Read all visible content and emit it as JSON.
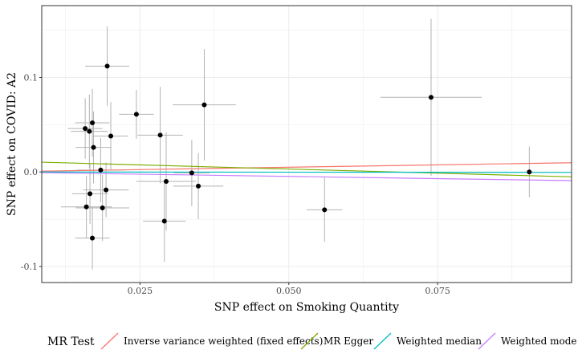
{
  "chart_data": {
    "type": "scatter",
    "xlabel": "SNP effect on Smoking Quantity",
    "ylabel": "SNP effect on COVID: A2",
    "xlim": [
      0.0085,
      0.0975
    ],
    "ylim": [
      -0.117,
      0.176
    ],
    "x_ticks": [
      0.025,
      0.05,
      0.075
    ],
    "x_tick_labels": [
      "0.025",
      "0.050",
      "0.075"
    ],
    "y_ticks": [
      -0.1,
      0.0,
      0.1
    ],
    "y_tick_labels": [
      "-0.1",
      "0.0",
      "0.1"
    ],
    "grid": true,
    "legend": {
      "title": "MR Test",
      "position": "bottom",
      "entries": [
        {
          "label": "Inverse variance weighted (fixed effects)",
          "color": "#F8766D"
        },
        {
          "label": "MR Egger",
          "color": "#7CAE00"
        },
        {
          "label": "Weighted median",
          "color": "#00BFC4"
        },
        {
          "label": "Weighted mode",
          "color": "#C77CFF"
        }
      ]
    },
    "points": [
      {
        "x": 0.0195,
        "y": 0.112,
        "se_x": 0.0037,
        "se_y": 0.042
      },
      {
        "x": 0.0739,
        "y": 0.079,
        "se_x": 0.0085,
        "se_y": 0.083
      },
      {
        "x": 0.0358,
        "y": 0.071,
        "se_x": 0.0053,
        "se_y": 0.059
      },
      {
        "x": 0.0244,
        "y": 0.061,
        "se_x": 0.0029,
        "se_y": 0.026
      },
      {
        "x": 0.017,
        "y": 0.052,
        "se_x": 0.0029,
        "se_y": 0.036
      },
      {
        "x": 0.0158,
        "y": 0.046,
        "se_x": 0.0029,
        "se_y": 0.032
      },
      {
        "x": 0.0165,
        "y": 0.043,
        "se_x": 0.0031,
        "se_y": 0.039
      },
      {
        "x": 0.0201,
        "y": 0.038,
        "se_x": 0.0029,
        "se_y": 0.036
      },
      {
        "x": 0.0284,
        "y": 0.039,
        "se_x": 0.0038,
        "se_y": 0.051
      },
      {
        "x": 0.0172,
        "y": 0.026,
        "se_x": 0.003,
        "se_y": 0.038
      },
      {
        "x": 0.0184,
        "y": 0.002,
        "se_x": 0.004,
        "se_y": 0.034
      },
      {
        "x": 0.0337,
        "y": -0.001,
        "se_x": 0.003,
        "se_y": 0.035
      },
      {
        "x": 0.0904,
        "y": 0.0,
        "se_x": 0.0,
        "se_y": 0.027
      },
      {
        "x": 0.0294,
        "y": -0.01,
        "se_x": 0.005,
        "se_y": 0.052
      },
      {
        "x": 0.0348,
        "y": -0.015,
        "se_x": 0.0042,
        "se_y": 0.035
      },
      {
        "x": 0.0193,
        "y": -0.019,
        "se_x": 0.0038,
        "se_y": 0.029
      },
      {
        "x": 0.0166,
        "y": -0.023,
        "se_x": 0.003,
        "se_y": 0.032
      },
      {
        "x": 0.016,
        "y": -0.037,
        "se_x": 0.0043,
        "se_y": 0.033
      },
      {
        "x": 0.0187,
        "y": -0.038,
        "se_x": 0.0045,
        "se_y": 0.035
      },
      {
        "x": 0.056,
        "y": -0.04,
        "se_x": 0.003,
        "se_y": 0.034
      },
      {
        "x": 0.0291,
        "y": -0.052,
        "se_x": 0.0036,
        "se_y": 0.043
      },
      {
        "x": 0.017,
        "y": -0.07,
        "se_x": 0.0029,
        "se_y": 0.033
      }
    ],
    "lines": [
      {
        "name": "Inverse variance weighted (fixed effects)",
        "color": "#F8766D",
        "intercept": 0.0,
        "slope": 0.1
      },
      {
        "name": "MR Egger",
        "color": "#7CAE00",
        "intercept": 0.0118,
        "slope": -0.174
      },
      {
        "name": "Weighted median",
        "color": "#00BFC4",
        "intercept": 0.0,
        "slope": -0.005
      },
      {
        "name": "Weighted mode",
        "color": "#C77CFF",
        "intercept": 0.0,
        "slope": -0.094
      }
    ]
  }
}
